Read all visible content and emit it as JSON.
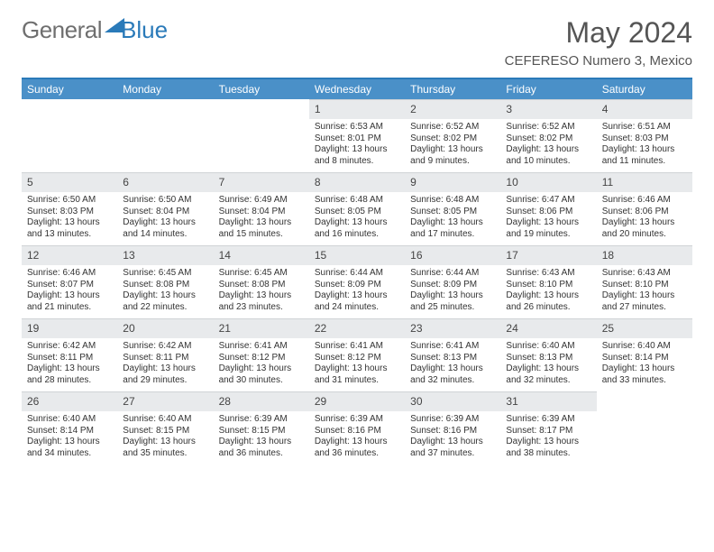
{
  "logo": {
    "text1": "General",
    "text2": "Blue"
  },
  "title": "May 2024",
  "location": "CEFERESO Numero 3, Mexico",
  "colors": {
    "accent": "#4a90c8",
    "header_bg": "#e8eaec",
    "text": "#333333"
  },
  "dayNames": [
    "Sunday",
    "Monday",
    "Tuesday",
    "Wednesday",
    "Thursday",
    "Friday",
    "Saturday"
  ],
  "weeks": [
    [
      {
        "day": "",
        "sunrise": "",
        "sunset": "",
        "daylight1": "",
        "daylight2": ""
      },
      {
        "day": "",
        "sunrise": "",
        "sunset": "",
        "daylight1": "",
        "daylight2": ""
      },
      {
        "day": "",
        "sunrise": "",
        "sunset": "",
        "daylight1": "",
        "daylight2": ""
      },
      {
        "day": "1",
        "sunrise": "Sunrise: 6:53 AM",
        "sunset": "Sunset: 8:01 PM",
        "daylight1": "Daylight: 13 hours",
        "daylight2": "and 8 minutes."
      },
      {
        "day": "2",
        "sunrise": "Sunrise: 6:52 AM",
        "sunset": "Sunset: 8:02 PM",
        "daylight1": "Daylight: 13 hours",
        "daylight2": "and 9 minutes."
      },
      {
        "day": "3",
        "sunrise": "Sunrise: 6:52 AM",
        "sunset": "Sunset: 8:02 PM",
        "daylight1": "Daylight: 13 hours",
        "daylight2": "and 10 minutes."
      },
      {
        "day": "4",
        "sunrise": "Sunrise: 6:51 AM",
        "sunset": "Sunset: 8:03 PM",
        "daylight1": "Daylight: 13 hours",
        "daylight2": "and 11 minutes."
      }
    ],
    [
      {
        "day": "5",
        "sunrise": "Sunrise: 6:50 AM",
        "sunset": "Sunset: 8:03 PM",
        "daylight1": "Daylight: 13 hours",
        "daylight2": "and 13 minutes."
      },
      {
        "day": "6",
        "sunrise": "Sunrise: 6:50 AM",
        "sunset": "Sunset: 8:04 PM",
        "daylight1": "Daylight: 13 hours",
        "daylight2": "and 14 minutes."
      },
      {
        "day": "7",
        "sunrise": "Sunrise: 6:49 AM",
        "sunset": "Sunset: 8:04 PM",
        "daylight1": "Daylight: 13 hours",
        "daylight2": "and 15 minutes."
      },
      {
        "day": "8",
        "sunrise": "Sunrise: 6:48 AM",
        "sunset": "Sunset: 8:05 PM",
        "daylight1": "Daylight: 13 hours",
        "daylight2": "and 16 minutes."
      },
      {
        "day": "9",
        "sunrise": "Sunrise: 6:48 AM",
        "sunset": "Sunset: 8:05 PM",
        "daylight1": "Daylight: 13 hours",
        "daylight2": "and 17 minutes."
      },
      {
        "day": "10",
        "sunrise": "Sunrise: 6:47 AM",
        "sunset": "Sunset: 8:06 PM",
        "daylight1": "Daylight: 13 hours",
        "daylight2": "and 19 minutes."
      },
      {
        "day": "11",
        "sunrise": "Sunrise: 6:46 AM",
        "sunset": "Sunset: 8:06 PM",
        "daylight1": "Daylight: 13 hours",
        "daylight2": "and 20 minutes."
      }
    ],
    [
      {
        "day": "12",
        "sunrise": "Sunrise: 6:46 AM",
        "sunset": "Sunset: 8:07 PM",
        "daylight1": "Daylight: 13 hours",
        "daylight2": "and 21 minutes."
      },
      {
        "day": "13",
        "sunrise": "Sunrise: 6:45 AM",
        "sunset": "Sunset: 8:08 PM",
        "daylight1": "Daylight: 13 hours",
        "daylight2": "and 22 minutes."
      },
      {
        "day": "14",
        "sunrise": "Sunrise: 6:45 AM",
        "sunset": "Sunset: 8:08 PM",
        "daylight1": "Daylight: 13 hours",
        "daylight2": "and 23 minutes."
      },
      {
        "day": "15",
        "sunrise": "Sunrise: 6:44 AM",
        "sunset": "Sunset: 8:09 PM",
        "daylight1": "Daylight: 13 hours",
        "daylight2": "and 24 minutes."
      },
      {
        "day": "16",
        "sunrise": "Sunrise: 6:44 AM",
        "sunset": "Sunset: 8:09 PM",
        "daylight1": "Daylight: 13 hours",
        "daylight2": "and 25 minutes."
      },
      {
        "day": "17",
        "sunrise": "Sunrise: 6:43 AM",
        "sunset": "Sunset: 8:10 PM",
        "daylight1": "Daylight: 13 hours",
        "daylight2": "and 26 minutes."
      },
      {
        "day": "18",
        "sunrise": "Sunrise: 6:43 AM",
        "sunset": "Sunset: 8:10 PM",
        "daylight1": "Daylight: 13 hours",
        "daylight2": "and 27 minutes."
      }
    ],
    [
      {
        "day": "19",
        "sunrise": "Sunrise: 6:42 AM",
        "sunset": "Sunset: 8:11 PM",
        "daylight1": "Daylight: 13 hours",
        "daylight2": "and 28 minutes."
      },
      {
        "day": "20",
        "sunrise": "Sunrise: 6:42 AM",
        "sunset": "Sunset: 8:11 PM",
        "daylight1": "Daylight: 13 hours",
        "daylight2": "and 29 minutes."
      },
      {
        "day": "21",
        "sunrise": "Sunrise: 6:41 AM",
        "sunset": "Sunset: 8:12 PM",
        "daylight1": "Daylight: 13 hours",
        "daylight2": "and 30 minutes."
      },
      {
        "day": "22",
        "sunrise": "Sunrise: 6:41 AM",
        "sunset": "Sunset: 8:12 PM",
        "daylight1": "Daylight: 13 hours",
        "daylight2": "and 31 minutes."
      },
      {
        "day": "23",
        "sunrise": "Sunrise: 6:41 AM",
        "sunset": "Sunset: 8:13 PM",
        "daylight1": "Daylight: 13 hours",
        "daylight2": "and 32 minutes."
      },
      {
        "day": "24",
        "sunrise": "Sunrise: 6:40 AM",
        "sunset": "Sunset: 8:13 PM",
        "daylight1": "Daylight: 13 hours",
        "daylight2": "and 32 minutes."
      },
      {
        "day": "25",
        "sunrise": "Sunrise: 6:40 AM",
        "sunset": "Sunset: 8:14 PM",
        "daylight1": "Daylight: 13 hours",
        "daylight2": "and 33 minutes."
      }
    ],
    [
      {
        "day": "26",
        "sunrise": "Sunrise: 6:40 AM",
        "sunset": "Sunset: 8:14 PM",
        "daylight1": "Daylight: 13 hours",
        "daylight2": "and 34 minutes."
      },
      {
        "day": "27",
        "sunrise": "Sunrise: 6:40 AM",
        "sunset": "Sunset: 8:15 PM",
        "daylight1": "Daylight: 13 hours",
        "daylight2": "and 35 minutes."
      },
      {
        "day": "28",
        "sunrise": "Sunrise: 6:39 AM",
        "sunset": "Sunset: 8:15 PM",
        "daylight1": "Daylight: 13 hours",
        "daylight2": "and 36 minutes."
      },
      {
        "day": "29",
        "sunrise": "Sunrise: 6:39 AM",
        "sunset": "Sunset: 8:16 PM",
        "daylight1": "Daylight: 13 hours",
        "daylight2": "and 36 minutes."
      },
      {
        "day": "30",
        "sunrise": "Sunrise: 6:39 AM",
        "sunset": "Sunset: 8:16 PM",
        "daylight1": "Daylight: 13 hours",
        "daylight2": "and 37 minutes."
      },
      {
        "day": "31",
        "sunrise": "Sunrise: 6:39 AM",
        "sunset": "Sunset: 8:17 PM",
        "daylight1": "Daylight: 13 hours",
        "daylight2": "and 38 minutes."
      },
      {
        "day": "",
        "sunrise": "",
        "sunset": "",
        "daylight1": "",
        "daylight2": ""
      }
    ]
  ]
}
